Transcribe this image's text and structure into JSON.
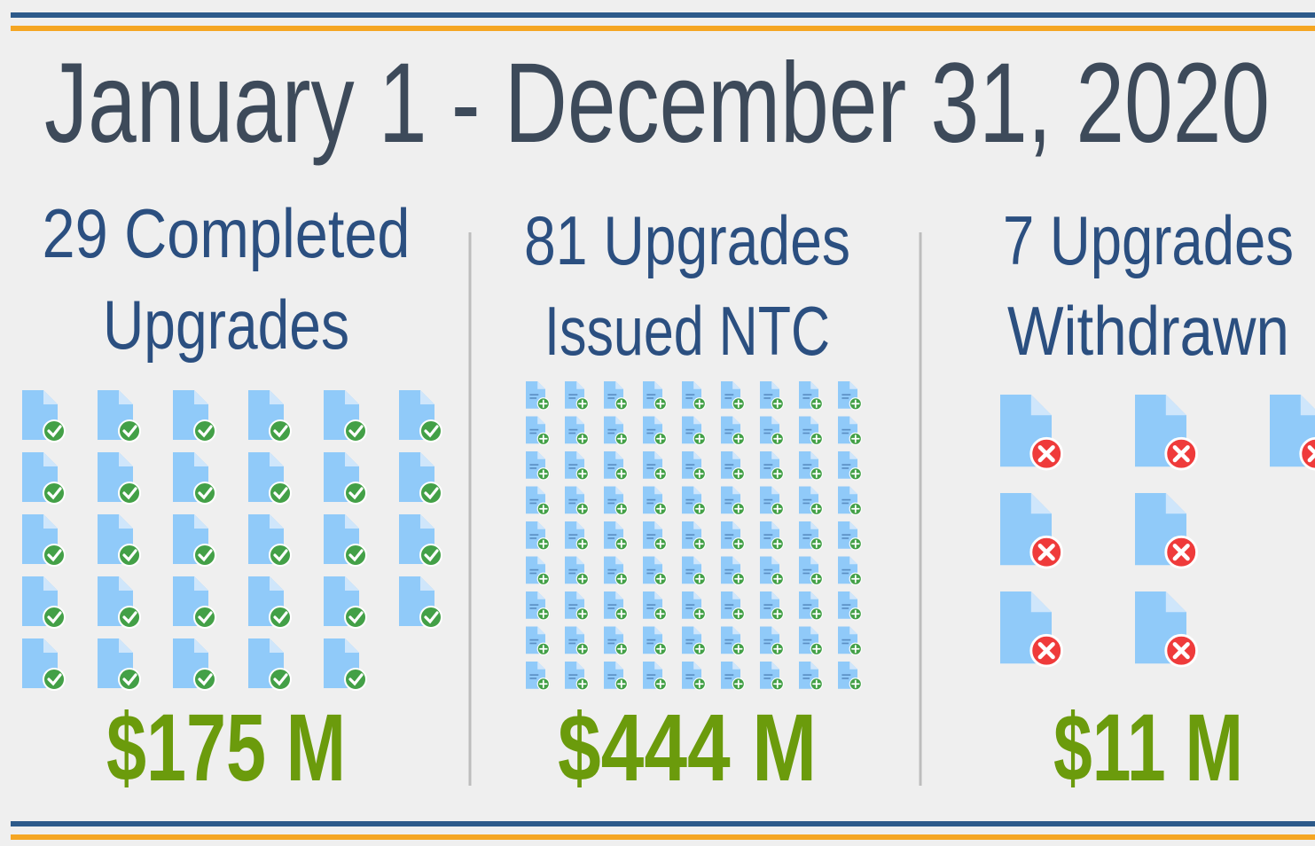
{
  "title": "January 1 - December 31, 2020",
  "columns": [
    {
      "count": 29,
      "heading_lines": [
        "Completed",
        "Upgrades"
      ],
      "amount": "$175 M"
    },
    {
      "count": 81,
      "heading_lines": [
        "Upgrades",
        "Issued NTC"
      ],
      "amount": "$444 M"
    },
    {
      "count": 7,
      "heading_lines": [
        "Upgrades",
        "Withdrawn"
      ],
      "amount": "$11 M"
    }
  ]
}
